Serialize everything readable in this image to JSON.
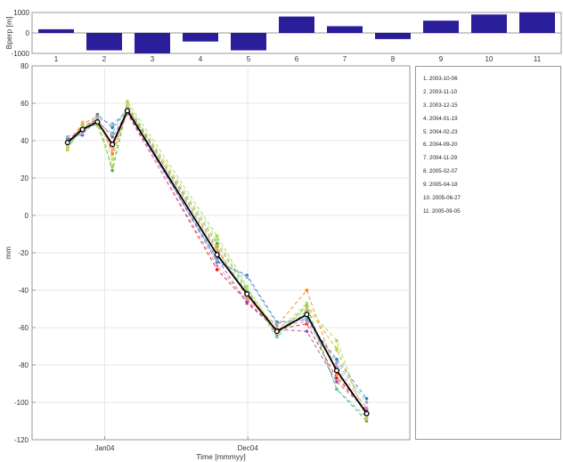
{
  "chart_data": [
    {
      "type": "bar",
      "ylabel": "Bperp [m]",
      "categories": [
        "1",
        "2",
        "3",
        "4",
        "5",
        "6",
        "7",
        "8",
        "9",
        "10",
        "11"
      ],
      "values": [
        180,
        -850,
        -1000,
        -420,
        -850,
        800,
        330,
        -300,
        600,
        900,
        1000
      ],
      "ylim": [
        -1000,
        1000
      ],
      "yticks": [
        "1000",
        "0",
        "-1000"
      ],
      "grid": false,
      "color": "#2a1d9a"
    },
    {
      "type": "line",
      "xlabel": "Time [mmmyy]",
      "ylabel": "mm",
      "ylim": [
        -120,
        80
      ],
      "yticks": [
        -120,
        -100,
        -80,
        -60,
        -40,
        -20,
        0,
        20,
        40,
        60,
        80
      ],
      "xticks": [
        "Jan04",
        "Dec04"
      ],
      "grid": true,
      "legend_placement": "right-panel",
      "legend": [
        "1. 2003-10-06",
        "2. 2003-11-10",
        "3. 2003-12-15",
        "4. 2004-01-19",
        "5. 2004-02-23",
        "6. 2004-09-20",
        "7. 2004-11-29",
        "8. 2005-02-07",
        "9. 2005-04-18",
        "10. 2005-06-27",
        "11. 2005-09-05"
      ],
      "x": [
        "2003-10-06",
        "2003-11-10",
        "2003-12-15",
        "2004-01-19",
        "2004-02-23",
        "2004-09-20",
        "2004-11-29",
        "2005-02-07",
        "2005-04-18",
        "2005-06-27",
        "2005-09-05"
      ],
      "mean_series": {
        "color": "#000000",
        "values": [
          39,
          46,
          50,
          38,
          56,
          -21,
          -42,
          -62,
          -53,
          -83,
          -106
        ]
      },
      "series": [
        {
          "color": "#e41a1c",
          "values": [
            40,
            47,
            50,
            37,
            55,
            -29,
            -46,
            -61,
            -58,
            -87,
            -104
          ]
        },
        {
          "color": "#4daf4a",
          "values": [
            36,
            48,
            51,
            24,
            58,
            -15,
            -40,
            -64,
            -48,
            -93,
            -110
          ]
        },
        {
          "color": "#377eb8",
          "values": [
            41,
            43,
            54,
            47,
            57,
            -25,
            -32,
            -57,
            -56,
            -77,
            -98
          ]
        },
        {
          "color": "#ff7f00",
          "values": [
            37,
            49,
            53,
            33,
            57,
            -17,
            -44,
            -59,
            -40,
            -85,
            -105
          ]
        },
        {
          "color": "#984ea3",
          "values": [
            39,
            46,
            51,
            42,
            55,
            -23,
            -47,
            -61,
            -62,
            -89,
            -104
          ]
        },
        {
          "color": "#a6d854",
          "values": [
            35,
            48,
            48,
            26,
            61,
            -11,
            -38,
            -63,
            -49,
            -67,
            -109
          ]
        },
        {
          "color": "#66c2a5",
          "values": [
            38,
            45,
            49,
            44,
            58,
            -19,
            -41,
            -65,
            -51,
            -93,
            -108
          ]
        },
        {
          "color": "#e78ac3",
          "values": [
            40,
            44,
            51,
            35,
            54,
            -27,
            -45,
            -59,
            -57,
            -81,
            -103
          ]
        },
        {
          "color": "#fdb462",
          "values": [
            37,
            50,
            50,
            36,
            60,
            -18,
            -43,
            -63,
            -50,
            -71,
            -108
          ]
        },
        {
          "color": "#80b1d3",
          "values": [
            42,
            46,
            52,
            49,
            56,
            -24,
            -33,
            -58,
            -55,
            -79,
            -100
          ]
        },
        {
          "color": "#b3de69",
          "values": [
            36,
            47,
            49,
            30,
            59,
            -13,
            -39,
            -62,
            -47,
            -72,
            -107
          ]
        }
      ]
    }
  ]
}
